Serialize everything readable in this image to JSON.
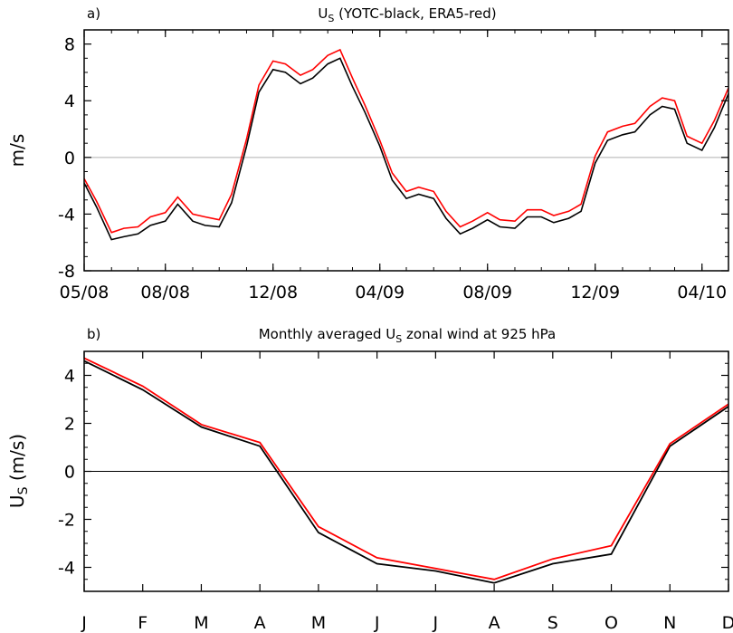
{
  "chart_data": [
    {
      "type": "line",
      "panel_label": "a)",
      "title_main": "U",
      "title_sub": "S",
      "title_rest": "(YOTC-black, ERA5-red)",
      "ylabel": "m/s",
      "xlabel": "",
      "ylim": [
        -8,
        9
      ],
      "yticks": [
        -8,
        -4,
        0,
        4,
        8
      ],
      "ytick_labels": [
        "-8",
        "-4",
        "0",
        "4",
        "8"
      ],
      "xlim": [
        "2008-05-01",
        "2010-05-01"
      ],
      "xticks": [
        "2008-05-01",
        "2008-08-01",
        "2008-12-01",
        "2009-04-01",
        "2009-08-01",
        "2009-12-01",
        "2010-04-01"
      ],
      "xtick_labels": [
        "05/08",
        "08/08",
        "12/08",
        "04/09",
        "08/09",
        "12/09",
        "04/10"
      ],
      "reference_line": 0,
      "series": [
        {
          "color": "#000000",
          "dates": [
            "2008-05-01",
            "2008-05-15",
            "2008-06-01",
            "2008-06-15",
            "2008-07-01",
            "2008-07-15",
            "2008-08-01",
            "2008-08-15",
            "2008-09-01",
            "2008-09-15",
            "2008-10-01",
            "2008-10-15",
            "2008-11-01",
            "2008-11-15",
            "2008-12-01",
            "2008-12-15",
            "2009-01-01",
            "2009-01-15",
            "2009-02-01",
            "2009-02-15",
            "2009-03-01",
            "2009-03-15",
            "2009-04-01",
            "2009-04-15",
            "2009-05-01",
            "2009-05-15",
            "2009-06-01",
            "2009-06-15",
            "2009-07-01",
            "2009-07-15",
            "2009-08-01",
            "2009-08-15",
            "2009-09-01",
            "2009-09-15",
            "2009-10-01",
            "2009-10-15",
            "2009-11-01",
            "2009-11-15",
            "2009-12-01",
            "2009-12-15",
            "2010-01-01",
            "2010-01-15",
            "2010-02-01",
            "2010-02-15",
            "2010-03-01",
            "2010-03-15",
            "2010-04-01",
            "2010-04-15",
            "2010-05-01"
          ],
          "values": [
            -1.8,
            -3.5,
            -5.8,
            -5.6,
            -5.4,
            -4.8,
            -4.5,
            -3.3,
            -4.5,
            -4.8,
            -4.9,
            -3.2,
            0.8,
            4.6,
            6.2,
            6.0,
            5.2,
            5.6,
            6.6,
            7.0,
            5.0,
            3.2,
            0.8,
            -1.6,
            -2.9,
            -2.6,
            -2.9,
            -4.3,
            -5.4,
            -5.0,
            -4.4,
            -4.9,
            -5.0,
            -4.2,
            -4.2,
            -4.6,
            -4.3,
            -3.8,
            -0.4,
            1.2,
            1.6,
            1.8,
            3.0,
            3.6,
            3.4,
            1.0,
            0.5,
            2.1,
            4.5
          ]
        },
        {
          "color": "#ff0000",
          "dates": [
            "2008-05-01",
            "2008-05-15",
            "2008-06-01",
            "2008-06-15",
            "2008-07-01",
            "2008-07-15",
            "2008-08-01",
            "2008-08-15",
            "2008-09-01",
            "2008-09-15",
            "2008-10-01",
            "2008-10-15",
            "2008-11-01",
            "2008-11-15",
            "2008-12-01",
            "2008-12-15",
            "2009-01-01",
            "2009-01-15",
            "2009-02-01",
            "2009-02-15",
            "2009-03-01",
            "2009-03-15",
            "2009-04-01",
            "2009-04-15",
            "2009-05-01",
            "2009-05-15",
            "2009-06-01",
            "2009-06-15",
            "2009-07-01",
            "2009-07-15",
            "2009-08-01",
            "2009-08-15",
            "2009-09-01",
            "2009-09-15",
            "2009-10-01",
            "2009-10-15",
            "2009-11-01",
            "2009-11-15",
            "2009-12-01",
            "2009-12-15",
            "2010-01-01",
            "2010-01-15",
            "2010-02-01",
            "2010-02-15",
            "2010-03-01",
            "2010-03-15",
            "2010-04-01",
            "2010-04-15",
            "2010-05-01"
          ],
          "values": [
            -1.5,
            -3.1,
            -5.3,
            -5.0,
            -4.9,
            -4.2,
            -3.9,
            -2.8,
            -4.0,
            -4.2,
            -4.4,
            -2.6,
            1.3,
            5.1,
            6.8,
            6.6,
            5.8,
            6.2,
            7.2,
            7.6,
            5.6,
            3.7,
            1.2,
            -1.1,
            -2.4,
            -2.1,
            -2.4,
            -3.8,
            -4.9,
            -4.5,
            -3.9,
            -4.4,
            -4.5,
            -3.7,
            -3.7,
            -4.1,
            -3.8,
            -3.3,
            0.1,
            1.8,
            2.2,
            2.4,
            3.6,
            4.2,
            4.0,
            1.5,
            1.0,
            2.6,
            4.9
          ]
        }
      ]
    },
    {
      "type": "line",
      "panel_label": "b)",
      "title_main": "Monthly averaged U",
      "title_sub": "S",
      "title_rest": "zonal wind at  925 hPa",
      "ylabel_main": "U",
      "ylabel_sub": "S",
      "ylabel_rest": "(m/s)",
      "xlabel": "",
      "ylim": [
        -5,
        5
      ],
      "yticks": [
        -4,
        -2,
        0,
        2,
        4
      ],
      "ytick_labels": [
        "-4",
        "-2",
        "0",
        "2",
        "4"
      ],
      "categories": [
        "J",
        "F",
        "M",
        "A",
        "M",
        "J",
        "J",
        "A",
        "S",
        "O",
        "N",
        "D"
      ],
      "reference_line": 0,
      "series": [
        {
          "color": "#000000",
          "values": [
            4.6,
            3.4,
            1.85,
            1.05,
            -2.55,
            -3.85,
            -4.15,
            -4.65,
            -3.85,
            -3.45,
            1.05,
            2.7
          ]
        },
        {
          "color": "#ff0000",
          "values": [
            4.72,
            3.55,
            1.95,
            1.2,
            -2.3,
            -3.6,
            -4.05,
            -4.5,
            -3.65,
            -3.1,
            1.15,
            2.8
          ]
        }
      ]
    }
  ]
}
